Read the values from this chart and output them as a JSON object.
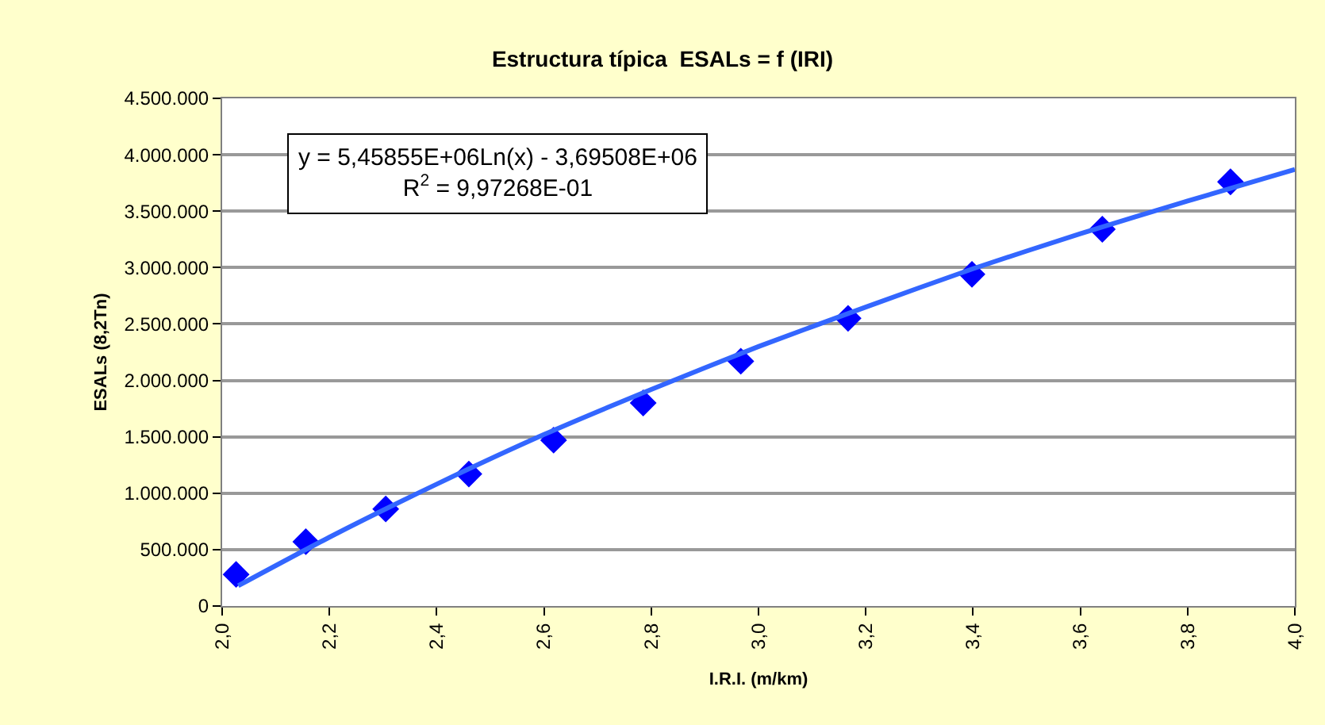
{
  "chart_data": {
    "type": "scatter",
    "title": "Estructura típica  ESALs = f (IRI)",
    "xlabel": "I.R.I. (m/km)",
    "ylabel": "ESALs (8,2Tn)",
    "annotations": [
      "y = 5,45855E+06Ln(x) - 3,69508E+06",
      "R$^{2}$ = 9,97268E-01"
    ],
    "x": [
      2.026,
      2.156,
      2.305,
      2.46,
      2.618,
      2.785,
      2.967,
      3.167,
      3.398,
      3.641,
      3.88
    ],
    "series": [
      {
        "color": "#0000ff",
        "marker": "diamond",
        "values": [
          280000,
          570000,
          860000,
          1170000,
          1470000,
          1800000,
          2170000,
          2550000,
          2940000,
          3340000,
          3760000
        ]
      },
      {
        "type": "line",
        "color": "#3366ff",
        "line_style": "solid",
        "x": [
          2.03,
          2.2,
          2.4,
          2.6,
          2.8,
          3.0,
          3.2,
          3.4,
          3.6,
          3.8,
          4.0
        ],
        "values": [
          180000,
          610000,
          1080000,
          1520000,
          1920000,
          2300000,
          2650000,
          2990000,
          3300000,
          3590000,
          3870000
        ]
      }
    ],
    "xlim": [
      2.0,
      4.0
    ],
    "xticks": [
      {
        "value": 2.0,
        "label": "2,0"
      },
      {
        "value": 2.2,
        "label": "2,2"
      },
      {
        "value": 2.4,
        "label": "2,4"
      },
      {
        "value": 2.6,
        "label": "2,6"
      },
      {
        "value": 2.8,
        "label": "2,8"
      },
      {
        "value": 3.0,
        "label": "3,0"
      },
      {
        "value": 3.2,
        "label": "3,2"
      },
      {
        "value": 3.4,
        "label": "3,4"
      },
      {
        "value": 3.6,
        "label": "3,6"
      },
      {
        "value": 3.8,
        "label": "3,8"
      },
      {
        "value": 4.0,
        "label": "4,0"
      }
    ],
    "ylim": [
      0,
      4500000
    ],
    "yticks": [
      0,
      {
        "value": 500000,
        "label": "500.000"
      },
      {
        "value": 1000000,
        "label": "1.000.000"
      },
      {
        "value": 1500000,
        "label": "1.500.000"
      },
      {
        "value": 2000000,
        "label": "2.000.000"
      },
      {
        "value": 2500000,
        "label": "2.500.000"
      },
      {
        "value": 3000000,
        "label": "3.000.000"
      },
      {
        "value": 3500000,
        "label": "3.500.000"
      },
      {
        "value": 4000000,
        "label": "4.000.000"
      },
      {
        "value": 4500000,
        "label": "4.500.000"
      }
    ],
    "grid": "y"
  }
}
